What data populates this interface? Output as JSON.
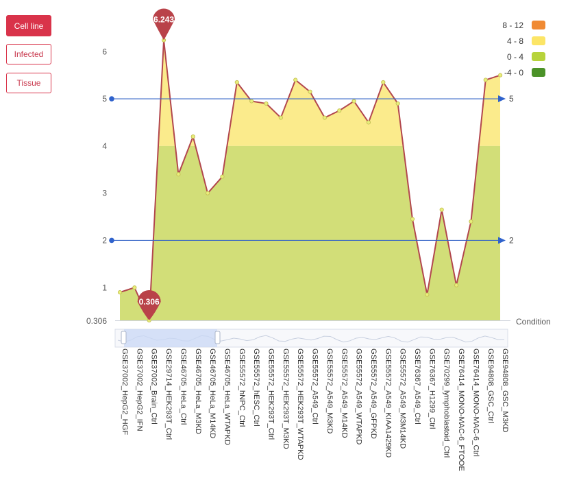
{
  "sidebar": {
    "buttons": [
      {
        "label": "Cell line",
        "active": true
      },
      {
        "label": "Infected",
        "active": false
      },
      {
        "label": "Tissue",
        "active": false
      }
    ]
  },
  "legend": {
    "items": [
      {
        "label": "8 - 12",
        "color": "#f08a33"
      },
      {
        "label": "4 - 8",
        "color": "#fce566"
      },
      {
        "label": "0 - 4",
        "color": "#b7d33b"
      },
      {
        "label": "-4 - 0",
        "color": "#4b9228"
      }
    ]
  },
  "chart_data": {
    "type": "area",
    "title": "",
    "xlabel": "Condition",
    "ylabel": "",
    "ylim": [
      0.306,
      6.5
    ],
    "y_ticks": [
      1,
      2,
      3,
      4,
      5,
      6
    ],
    "y_min_label": "0.306",
    "band_colors": {
      "0-4": "#d2de78",
      "4-8": "#fbeb8c"
    },
    "line_color": "#b2474e",
    "categories": [
      "GSE37002_HepG2_HGF",
      "GSE37002_HepG2_IFN",
      "GSE37002_Brain_Ctrl",
      "GSE29714_HEK293T_Ctrl",
      "GSE46705_HeLa_Ctrl",
      "GSE46705_HeLa_M3KD",
      "GSE46705_HeLa_M14KD",
      "GSE46705_HeLa_WTAPKD",
      "GSE55572_hNPC_Ctrl",
      "GSE55572_hESC_Ctrl",
      "GSE55572_HEK293T_Ctrl",
      "GSE55572_HEK293T_M3KD",
      "GSE55572_HEK293T_WTAPKD",
      "GSE55572_A549_Ctrl",
      "GSE55572_A549_M3KD",
      "GSE55572_A549_M14KD",
      "GSE55572_A549_WTAPKD",
      "GSE55572_A549_GFPKD",
      "GSE55572_A549_KIAA1429KD",
      "GSE55572_A549_M3M14KD",
      "GSE76367_A549_Ctrl",
      "GSE76367_H1299_Ctrl",
      "GSE70299_lymphoblastoid_Ctrl",
      "GSE76414_MONO-MAC-6_FTOOE",
      "GSE76414_MONO-MAC-6_Ctrl",
      "GSE94808_GSC_Ctrl",
      "GSE94808_GSC_M3KD"
    ],
    "values": [
      0.9,
      1.0,
      0.306,
      6.243,
      3.4,
      4.2,
      3.0,
      3.35,
      5.35,
      4.95,
      4.9,
      4.6,
      5.4,
      5.15,
      4.6,
      4.75,
      4.95,
      4.5,
      5.35,
      4.9,
      2.45,
      0.85,
      2.65,
      1.05,
      2.4,
      5.4,
      5.5
    ],
    "markers": [
      {
        "type": "max",
        "label": "6.243",
        "index": 3
      },
      {
        "type": "min",
        "label": "0.306",
        "index": 2
      }
    ],
    "reference_lines": [
      {
        "value": 5,
        "label": "5"
      },
      {
        "value": 2,
        "label": "2"
      }
    ]
  }
}
